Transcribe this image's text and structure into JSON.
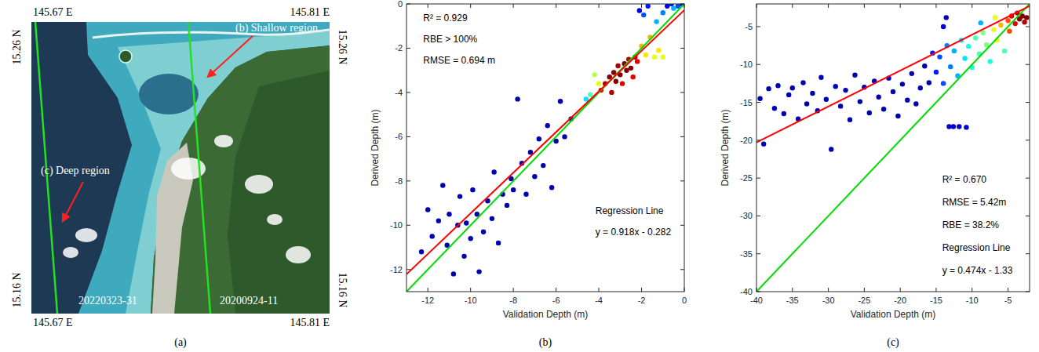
{
  "chart_data": [
    {
      "type": "map",
      "panel": "(a)",
      "lon_labels": [
        "145.67 E",
        "145.81 E"
      ],
      "lat_labels": [
        "15.26 N",
        "15.16 N"
      ],
      "tracks": [
        {
          "label": "20220323-31",
          "color": "#22e022"
        },
        {
          "label": "20200924-11",
          "color": "#22e022"
        }
      ],
      "regions": [
        {
          "label": "(b) Shallow region"
        },
        {
          "label": "(c) Deep region"
        }
      ]
    },
    {
      "type": "scatter",
      "panel": "(b)",
      "x_label": "Validation Depth (m)",
      "y_label": "Derived Depth (m)",
      "xlim": [
        -13,
        0
      ],
      "ylim": [
        -13,
        0
      ],
      "xticks": [
        -12,
        -10,
        -8,
        -6,
        -4,
        -2,
        0
      ],
      "yticks": [
        -12,
        -10,
        -8,
        -6,
        -4,
        -2,
        0
      ],
      "series": [
        {
          "x": [
            -12.3,
            -12,
            -11.8,
            -11.5,
            -11.3,
            -11.1,
            -11,
            -10.8,
            -10.6,
            -10.5,
            -10.3,
            -10.2,
            -10,
            -9.9,
            -9.7,
            -9.6,
            -9.4,
            -9.2,
            -9,
            -8.9,
            -8.7,
            -8.5,
            -8.3,
            -8.1,
            -8,
            -7.8,
            -7.6,
            -7.4,
            -7.2,
            -7,
            -6.8,
            -6.6,
            -6.4,
            -6.2,
            -6,
            -5.8,
            -5.6,
            -5.3,
            -4.6,
            -4.4,
            -4.2,
            -4,
            -3.9,
            -3.7,
            -3.5,
            -3.4,
            -3.3,
            -3.2,
            -3.1,
            -3,
            -2.9,
            -2.8,
            -2.7,
            -2.6,
            -2.5,
            -2.4,
            -2.3,
            -2.2,
            -2,
            -1.8,
            -1.6,
            -1.4,
            -1.2,
            -1,
            -2.1,
            -1.9,
            -1.7,
            -1.3,
            -1,
            -0.8,
            -0.6,
            -0.3,
            -0.1,
            -0.5
          ],
          "values": [
            -11.2,
            -9.3,
            -10.5,
            -9.8,
            -8.2,
            -10.9,
            -9.5,
            -12.2,
            -10,
            -8.7,
            -11.4,
            -9.9,
            -10.6,
            -8.4,
            -9.5,
            -12.1,
            -10.3,
            -8.9,
            -9.7,
            -7.6,
            -10.8,
            -8.6,
            -9.1,
            -7.9,
            -8.4,
            -4.3,
            -7.2,
            -8.6,
            -6.7,
            -7.8,
            -6.1,
            -7.3,
            -5.5,
            -8.3,
            -6.2,
            -4.4,
            -6,
            -5.2,
            -4.3,
            -4.1,
            -3.2,
            -3.6,
            -3.9,
            -3.6,
            -3.3,
            -4,
            -3.1,
            -3.5,
            -2.8,
            -3.2,
            -3.6,
            -2.7,
            -3,
            -2.5,
            -2.9,
            -3.3,
            -2.4,
            -2.6,
            -1.9,
            -2.3,
            -1.5,
            -2.4,
            -2.1,
            -2.4,
            -0.3,
            -0.5,
            -0.1,
            -0.8,
            -0.4,
            -0.1,
            0,
            -0.1,
            0,
            -0.2
          ],
          "density": [
            0.05,
            0.05,
            0.05,
            0.05,
            0.05,
            0.05,
            0.05,
            0.05,
            0.05,
            0.05,
            0.05,
            0.05,
            0.05,
            0.05,
            0.05,
            0.05,
            0.05,
            0.05,
            0.05,
            0.05,
            0.05,
            0.05,
            0.05,
            0.05,
            0.05,
            0.05,
            0.05,
            0.05,
            0.05,
            0.05,
            0.05,
            0.05,
            0.05,
            0.05,
            0.05,
            0.05,
            0.05,
            0.05,
            0.35,
            0.45,
            0.55,
            0.6,
            0.9,
            0.95,
            1,
            0.95,
            1,
            1,
            0.95,
            1,
            0.9,
            1,
            1,
            0.95,
            1,
            0.9,
            0.95,
            0.9,
            0.7,
            0.65,
            0.7,
            0.6,
            0.65,
            0.6,
            0.1,
            0.2,
            0.15,
            0.3,
            0.25,
            0.1,
            0.15,
            0.2,
            0.1,
            0.3
          ]
        }
      ],
      "annotations": [
        "R² = 0.929",
        "RBE > 100%",
        "RMSE = 0.694 m"
      ],
      "regression": {
        "label": "Regression Line",
        "equation": "y = 0.918x - 0.282",
        "slope": 0.918,
        "intercept": -0.282,
        "color": "#ff0000"
      },
      "identity_line": {
        "color": "#00dd00"
      }
    },
    {
      "type": "scatter",
      "panel": "(c)",
      "x_label": "Validation Depth (m)",
      "y_label": "Derived Depth (m)",
      "xlim": [
        -40,
        -2
      ],
      "ylim": [
        -40,
        -2
      ],
      "xticks": [
        -40,
        -35,
        -30,
        -25,
        -20,
        -15,
        -10,
        -5
      ],
      "yticks": [
        -40,
        -35,
        -30,
        -25,
        -20,
        -15,
        -10,
        -5
      ],
      "series": [
        {
          "x": [
            -39.5,
            -39,
            -38.3,
            -37.5,
            -37,
            -36.2,
            -35.5,
            -35,
            -34.2,
            -33.5,
            -33,
            -32.2,
            -31.5,
            -31,
            -30.3,
            -29.6,
            -29,
            -28.3,
            -27.6,
            -27,
            -26.3,
            -25.6,
            -25,
            -24.3,
            -23.6,
            -23,
            -22.3,
            -21.6,
            -21,
            -20.3,
            -19.7,
            -19,
            -18.4,
            -17.8,
            -17.2,
            -16.6,
            -16,
            -13.2,
            -12.6,
            -11.8,
            -10.8,
            -15.5,
            -15,
            -14.5,
            -14,
            -13.5,
            -13,
            -12.5,
            -12,
            -11.5,
            -11,
            -10.5,
            -10,
            -9.5,
            -9,
            -8.5,
            -8,
            -7.5,
            -7,
            -6.5,
            -6,
            -5.5,
            -5,
            -4.8,
            -4.5,
            -4,
            -3.7,
            -3.4,
            -3,
            -2.7,
            -2.4,
            -6.8,
            -8.8,
            -14,
            -13.6
          ],
          "values": [
            -14.5,
            -20.5,
            -13.2,
            -15.8,
            -12.8,
            -16.5,
            -14,
            -13.1,
            -17.2,
            -12.4,
            -15.2,
            -13.8,
            -16.1,
            -11.7,
            -14.6,
            -21.2,
            -12.9,
            -15.5,
            -13.4,
            -17.3,
            -11.4,
            -14.9,
            -13,
            -16.4,
            -12.2,
            -14.3,
            -15.9,
            -11.8,
            -13.6,
            -16.8,
            -12.6,
            -14.7,
            -11.2,
            -15.2,
            -13.1,
            -10.2,
            -12.4,
            -18.2,
            -18.2,
            -18.2,
            -18.3,
            -8.5,
            -11,
            -9,
            -12.5,
            -7.5,
            -10.3,
            -8.2,
            -11.5,
            -6.8,
            -9.2,
            -7.6,
            -10.4,
            -6.5,
            -8.6,
            -5.8,
            -7.4,
            -9.6,
            -5.4,
            -6.8,
            -4.8,
            -8.2,
            -4.2,
            -5.6,
            -3.6,
            -4.6,
            -3.2,
            -4,
            -3.6,
            -4.4,
            -3.8,
            -3.8,
            -4.5,
            -5,
            -3.8
          ],
          "density": [
            0.05,
            0.05,
            0.05,
            0.05,
            0.05,
            0.05,
            0.05,
            0.05,
            0.05,
            0.05,
            0.05,
            0.05,
            0.05,
            0.05,
            0.05,
            0.05,
            0.05,
            0.05,
            0.05,
            0.05,
            0.05,
            0.05,
            0.05,
            0.05,
            0.05,
            0.05,
            0.05,
            0.05,
            0.05,
            0.05,
            0.05,
            0.05,
            0.05,
            0.05,
            0.05,
            0.05,
            0.05,
            0.08,
            0.08,
            0.08,
            0.08,
            0.15,
            0.15,
            0.2,
            0.2,
            0.25,
            0.25,
            0.3,
            0.3,
            0.35,
            0.35,
            0.4,
            0.4,
            0.45,
            0.45,
            0.5,
            0.5,
            0.4,
            0.6,
            0.6,
            0.7,
            0.45,
            0.8,
            0.8,
            0.9,
            0.9,
            0.95,
            1,
            1,
            0.95,
            1,
            0.6,
            0.3,
            0.1,
            0.05
          ]
        }
      ],
      "annotations": [
        "R² = 0.670",
        "RMSE = 5.42m",
        "RBE = 38.2%"
      ],
      "regression": {
        "label": "Regression Line",
        "equation": "y = 0.474x - 1.33",
        "slope": 0.474,
        "intercept": -1.33,
        "color": "#ff0000"
      },
      "identity_line": {
        "color": "#00dd00"
      }
    }
  ]
}
